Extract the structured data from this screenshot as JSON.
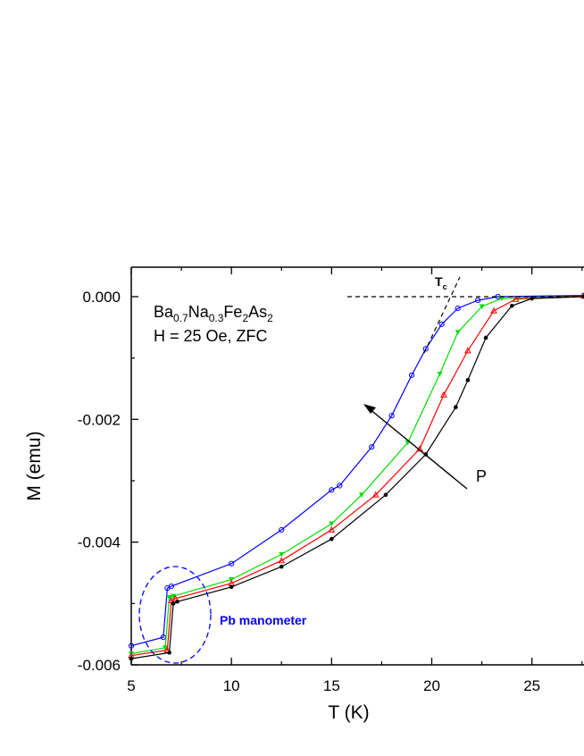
{
  "chart_data": {
    "type": "line",
    "title": "",
    "xlabel": "T (K)",
    "ylabel": "M (emu)",
    "xlim": [
      5,
      27.6
    ],
    "ylim": [
      -0.006,
      0.00048
    ],
    "xticks": [
      5,
      10,
      15,
      20,
      25
    ],
    "xtick_labels": [
      "5",
      "10",
      "15",
      "20",
      "25"
    ],
    "yticks": [
      0,
      -0.002,
      -0.004,
      -0.006
    ],
    "ytick_labels": [
      "0.000",
      "-0.002",
      "-0.004",
      "-0.006"
    ],
    "grid": false,
    "series": [
      {
        "color": "#0000ff",
        "marker": "open-circle",
        "x": [
          5,
          6.6,
          6.8,
          7.0,
          10,
          12.5,
          15,
          15.4,
          17,
          18,
          19,
          19.7,
          20.5,
          21.3,
          22.3,
          23.3,
          27.6
        ],
        "y": [
          -0.00569,
          -0.00555,
          -0.00475,
          -0.00472,
          -0.00435,
          -0.0038,
          -0.00315,
          -0.00308,
          -0.00245,
          -0.00194,
          -0.00128,
          -0.00085,
          -0.00045,
          -0.00019,
          -6e-05,
          0,
          2e-05
        ]
      },
      {
        "color": "#00dd00",
        "marker": "filled-down-triangle",
        "x": [
          5,
          6.7,
          6.9,
          7.1,
          10,
          12.5,
          15,
          16.5,
          18.8,
          20.4,
          21.3,
          22.5,
          23.5,
          27.6
        ],
        "y": [
          -0.00582,
          -0.00572,
          -0.0049,
          -0.00488,
          -0.00461,
          -0.0042,
          -0.0037,
          -0.00323,
          -0.00238,
          -0.00126,
          -0.00058,
          -0.00016,
          -3e-05,
          1e-05
        ]
      },
      {
        "color": "#ff0000",
        "marker": "open-triangle",
        "x": [
          5,
          6.8,
          7.0,
          7.2,
          10,
          12.5,
          15,
          17.2,
          19.4,
          20.6,
          21.8,
          23.1,
          24.2,
          27.6
        ],
        "y": [
          -0.00585,
          -0.00576,
          -0.00495,
          -0.00492,
          -0.00467,
          -0.0043,
          -0.0038,
          -0.00323,
          -0.00248,
          -0.0016,
          -0.00088,
          -0.00023,
          -4e-05,
          1e-05
        ]
      },
      {
        "color": "#000000",
        "marker": "filled-circle",
        "x": [
          5,
          6.9,
          7.1,
          7.3,
          10,
          12.5,
          15,
          17.7,
          19.7,
          21.2,
          21.8,
          22.7,
          24.0,
          25,
          27.6
        ],
        "y": [
          -0.0059,
          -0.0058,
          -0.005,
          -0.00497,
          -0.00473,
          -0.0044,
          -0.00395,
          -0.00323,
          -0.00257,
          -0.0018,
          -0.00136,
          -0.00067,
          -0.00015,
          -3e-05,
          0
        ]
      }
    ],
    "annotations": {
      "compound": {
        "base": [
          "Ba",
          "Na",
          "Fe",
          "As"
        ],
        "subs": [
          "0.7",
          "0.3",
          "2",
          "2"
        ]
      },
      "condition": "H = 25 Oe, ZFC",
      "tc_label": "T",
      "tc_sub": "c",
      "arrow_label": "P",
      "manometer_label": "Pb manometer",
      "manometer_color": "#0000ff"
    }
  }
}
